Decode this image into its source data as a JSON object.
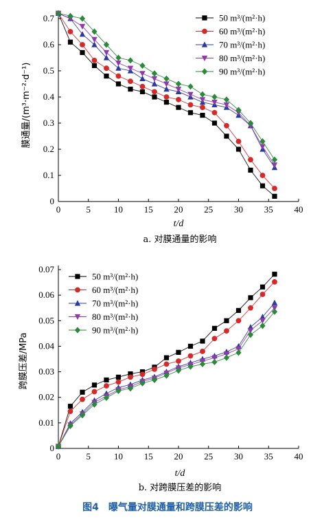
{
  "figure_title": "图4　曝气量对膜通量和跨膜压差的影响",
  "chart_data": [
    {
      "type": "line",
      "caption": "a. 对膜通量的影响",
      "xlabel": "t/d",
      "ylabel": "膜通量/(m³·m⁻²·d⁻¹)",
      "xlim": [
        0,
        40
      ],
      "ylim": [
        0,
        0.7
      ],
      "xticks": [
        "0",
        "5",
        "10",
        "15",
        "20",
        "25",
        "30",
        "35",
        "40"
      ],
      "yticks": [
        "0",
        "0.1",
        "0.2",
        "0.3",
        "0.4",
        "0.5",
        "0.6",
        "0.7"
      ],
      "legend_position": "top-right",
      "x": [
        0,
        2,
        4,
        6,
        8,
        10,
        12,
        14,
        16,
        18,
        20,
        22,
        24,
        26,
        28,
        30,
        32,
        34,
        36
      ],
      "series": [
        {
          "name": "50 m³/(m²·h)",
          "color": "#000000",
          "marker": "square",
          "values": [
            0.72,
            0.61,
            0.57,
            0.52,
            0.48,
            0.45,
            0.43,
            0.42,
            0.4,
            0.38,
            0.36,
            0.34,
            0.33,
            0.3,
            0.25,
            0.2,
            0.12,
            0.06,
            0.02
          ]
        },
        {
          "name": "60 m³/(m²·h)",
          "color": "#d42a2a",
          "marker": "circle",
          "values": [
            0.72,
            0.65,
            0.6,
            0.54,
            0.51,
            0.48,
            0.46,
            0.44,
            0.42,
            0.4,
            0.39,
            0.37,
            0.36,
            0.34,
            0.29,
            0.23,
            0.16,
            0.1,
            0.05
          ]
        },
        {
          "name": "70 m³/(m²·h)",
          "color": "#2a3a9e",
          "marker": "triangle-up",
          "values": [
            0.72,
            0.7,
            0.64,
            0.6,
            0.55,
            0.51,
            0.5,
            0.47,
            0.45,
            0.43,
            0.42,
            0.4,
            0.38,
            0.37,
            0.36,
            0.33,
            0.29,
            0.2,
            0.13
          ]
        },
        {
          "name": "80 m³/(m²·h)",
          "color": "#8e3aa8",
          "marker": "triangle-down",
          "values": [
            0.72,
            0.7,
            0.67,
            0.62,
            0.57,
            0.53,
            0.51,
            0.49,
            0.47,
            0.45,
            0.43,
            0.41,
            0.39,
            0.38,
            0.37,
            0.34,
            0.29,
            0.21,
            0.14
          ]
        },
        {
          "name": "90 m³/(m²·h)",
          "color": "#2a8a3a",
          "marker": "diamond",
          "values": [
            0.72,
            0.71,
            0.7,
            0.65,
            0.6,
            0.55,
            0.54,
            0.52,
            0.49,
            0.47,
            0.45,
            0.44,
            0.41,
            0.4,
            0.39,
            0.35,
            0.3,
            0.23,
            0.16
          ]
        }
      ]
    },
    {
      "type": "line",
      "caption": "b. 对跨膜压差的影响",
      "xlabel": "t/d",
      "ylabel": "跨膜压差/MPa",
      "xlim": [
        0,
        40
      ],
      "ylim": [
        0,
        0.07
      ],
      "xticks": [
        "0",
        "5",
        "10",
        "15",
        "20",
        "25",
        "30",
        "35",
        "40"
      ],
      "yticks": [
        "0",
        "0.01",
        "0.02",
        "0.03",
        "0.04",
        "0.05",
        "0.06",
        "0.07"
      ],
      "legend_position": "top-left",
      "x": [
        0,
        2,
        4,
        6,
        8,
        10,
        12,
        14,
        16,
        18,
        20,
        22,
        24,
        26,
        28,
        30,
        32,
        34,
        36
      ],
      "series": [
        {
          "name": "50 m³/(m²·h)",
          "color": "#000000",
          "marker": "square",
          "values": [
            0.0008,
            0.0165,
            0.022,
            0.0248,
            0.0268,
            0.0279,
            0.0292,
            0.03,
            0.0318,
            0.0355,
            0.0376,
            0.04,
            0.042,
            0.047,
            0.05,
            0.054,
            0.059,
            0.0632,
            0.0682
          ]
        },
        {
          "name": "60 m³/(m²·h)",
          "color": "#d42a2a",
          "marker": "circle",
          "values": [
            0.0008,
            0.0145,
            0.0192,
            0.0222,
            0.0245,
            0.026,
            0.0279,
            0.029,
            0.031,
            0.033,
            0.0342,
            0.0362,
            0.038,
            0.043,
            0.046,
            0.05,
            0.055,
            0.0603,
            0.0652
          ]
        },
        {
          "name": "70 m³/(m²·h)",
          "color": "#2a3a9e",
          "marker": "triangle-up",
          "values": [
            0.0008,
            0.0098,
            0.0142,
            0.0188,
            0.0215,
            0.0238,
            0.025,
            0.0268,
            0.028,
            0.03,
            0.032,
            0.0335,
            0.035,
            0.0362,
            0.0378,
            0.04,
            0.0475,
            0.0515,
            0.057
          ]
        },
        {
          "name": "80 m³/(m²·h)",
          "color": "#8e3aa8",
          "marker": "triangle-down",
          "values": [
            0.0008,
            0.0092,
            0.0135,
            0.018,
            0.0205,
            0.023,
            0.0242,
            0.0262,
            0.0275,
            0.0295,
            0.0315,
            0.0328,
            0.0342,
            0.0355,
            0.037,
            0.039,
            0.0462,
            0.05,
            0.055
          ]
        },
        {
          "name": "90 m³/(m²·h)",
          "color": "#2a8a3a",
          "marker": "diamond",
          "values": [
            0.0008,
            0.0088,
            0.013,
            0.0172,
            0.0198,
            0.0225,
            0.0235,
            0.0255,
            0.0268,
            0.0285,
            0.0305,
            0.032,
            0.033,
            0.0338,
            0.0355,
            0.0375,
            0.0445,
            0.048,
            0.0535
          ]
        }
      ]
    }
  ]
}
